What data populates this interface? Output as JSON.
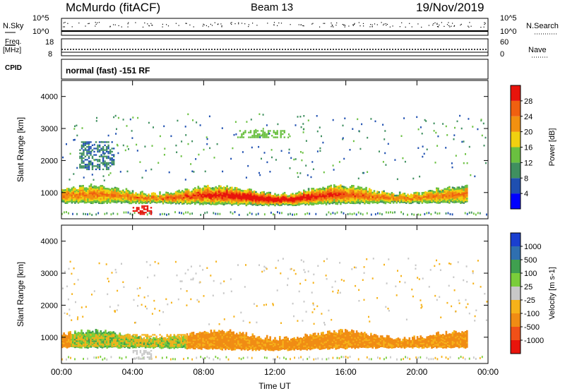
{
  "header": {
    "station": "McMurdo (fitACF)",
    "beam": "Beam 13",
    "date": "19/Nov/2019"
  },
  "noise_panel": {
    "left_label": "N.Sky",
    "right_label": "N.Search",
    "left_ticks": [
      "10^5",
      "10^0"
    ],
    "right_ticks": [
      "10^5",
      "10^0"
    ]
  },
  "freq_panel": {
    "left_label_1": "Freq.",
    "left_label_2": "[MHz]",
    "left_ticks": [
      "18",
      "8"
    ],
    "right_label": "Nave",
    "right_ticks": [
      "60",
      "0"
    ]
  },
  "cpid": {
    "label": "CPID",
    "mode": "normal (fast) -151 RF"
  },
  "chart_data": [
    {
      "type": "heatmap",
      "title": "",
      "ylabel": "Slant Range [km]",
      "xlabel": "",
      "x_ticks": [
        "00:00",
        "04:00",
        "08:00",
        "12:00",
        "16:00",
        "20:00",
        "00:00"
      ],
      "x_range_hours": [
        0,
        24
      ],
      "y_ticks": [
        "1000",
        "2000",
        "3000",
        "4000"
      ],
      "y_range_km": [
        180,
        4500
      ],
      "colorbar": {
        "label": "Power [dB]",
        "tick_labels": [
          "4",
          "8",
          "12",
          "16",
          "20",
          "24",
          "28"
        ],
        "colors": [
          "#0000ff",
          "#1f4fb0",
          "#3f8f5f",
          "#6ac040",
          "#f0d010",
          "#f29010",
          "#f06010",
          "#e8140c"
        ]
      },
      "bands": [
        {
          "name": "main-echo-band",
          "start_h": 0.0,
          "end_h": 22.8,
          "range_km": [
            600,
            1250
          ],
          "peak_h": 11.5,
          "level": "high"
        },
        {
          "name": "near-range-patch",
          "start_h": 4.0,
          "end_h": 5.0,
          "range_km": [
            300,
            600
          ],
          "level": "high"
        },
        {
          "name": "far-range-patch",
          "start_h": 10.0,
          "end_h": 12.5,
          "range_km": [
            2700,
            2950
          ],
          "level": "medium"
        },
        {
          "name": "early-patch",
          "start_h": 1.0,
          "end_h": 3.0,
          "range_km": [
            1700,
            2600
          ],
          "level": "low"
        }
      ]
    },
    {
      "type": "heatmap",
      "title": "",
      "ylabel": "Slant Range [km]",
      "xlabel": "Time UT",
      "x_ticks": [
        "00:00",
        "04:00",
        "08:00",
        "12:00",
        "16:00",
        "20:00",
        "00:00"
      ],
      "x_range_hours": [
        0,
        24
      ],
      "y_ticks": [
        "1000",
        "2000",
        "3000",
        "4000"
      ],
      "y_range_km": [
        180,
        4500
      ],
      "colorbar": {
        "label": "Velocity [m s-1]",
        "tick_labels": [
          "1000",
          "500",
          "100",
          "25",
          "-25",
          "-100",
          "-500",
          "-1000"
        ],
        "colors": [
          "#1a3fd0",
          "#2f6fb0",
          "#3f9f4f",
          "#7acd3a",
          "#c8c8c8",
          "#f6b21a",
          "#f08c14",
          "#f05018",
          "#e8140c"
        ]
      },
      "bands": [
        {
          "name": "main-echo-band",
          "start_h": 0.0,
          "end_h": 22.8,
          "range_km": [
            600,
            1250
          ],
          "velocity": "-100 to -500"
        },
        {
          "name": "eastward-green-segment",
          "start_h": 0.5,
          "end_h": 7.0,
          "range_km": [
            700,
            1100
          ],
          "velocity": "25 to 100"
        },
        {
          "name": "ground-scatter-patch",
          "start_h": 4.0,
          "end_h": 5.0,
          "range_km": [
            300,
            600
          ],
          "velocity": "-25 to 25"
        }
      ]
    }
  ]
}
